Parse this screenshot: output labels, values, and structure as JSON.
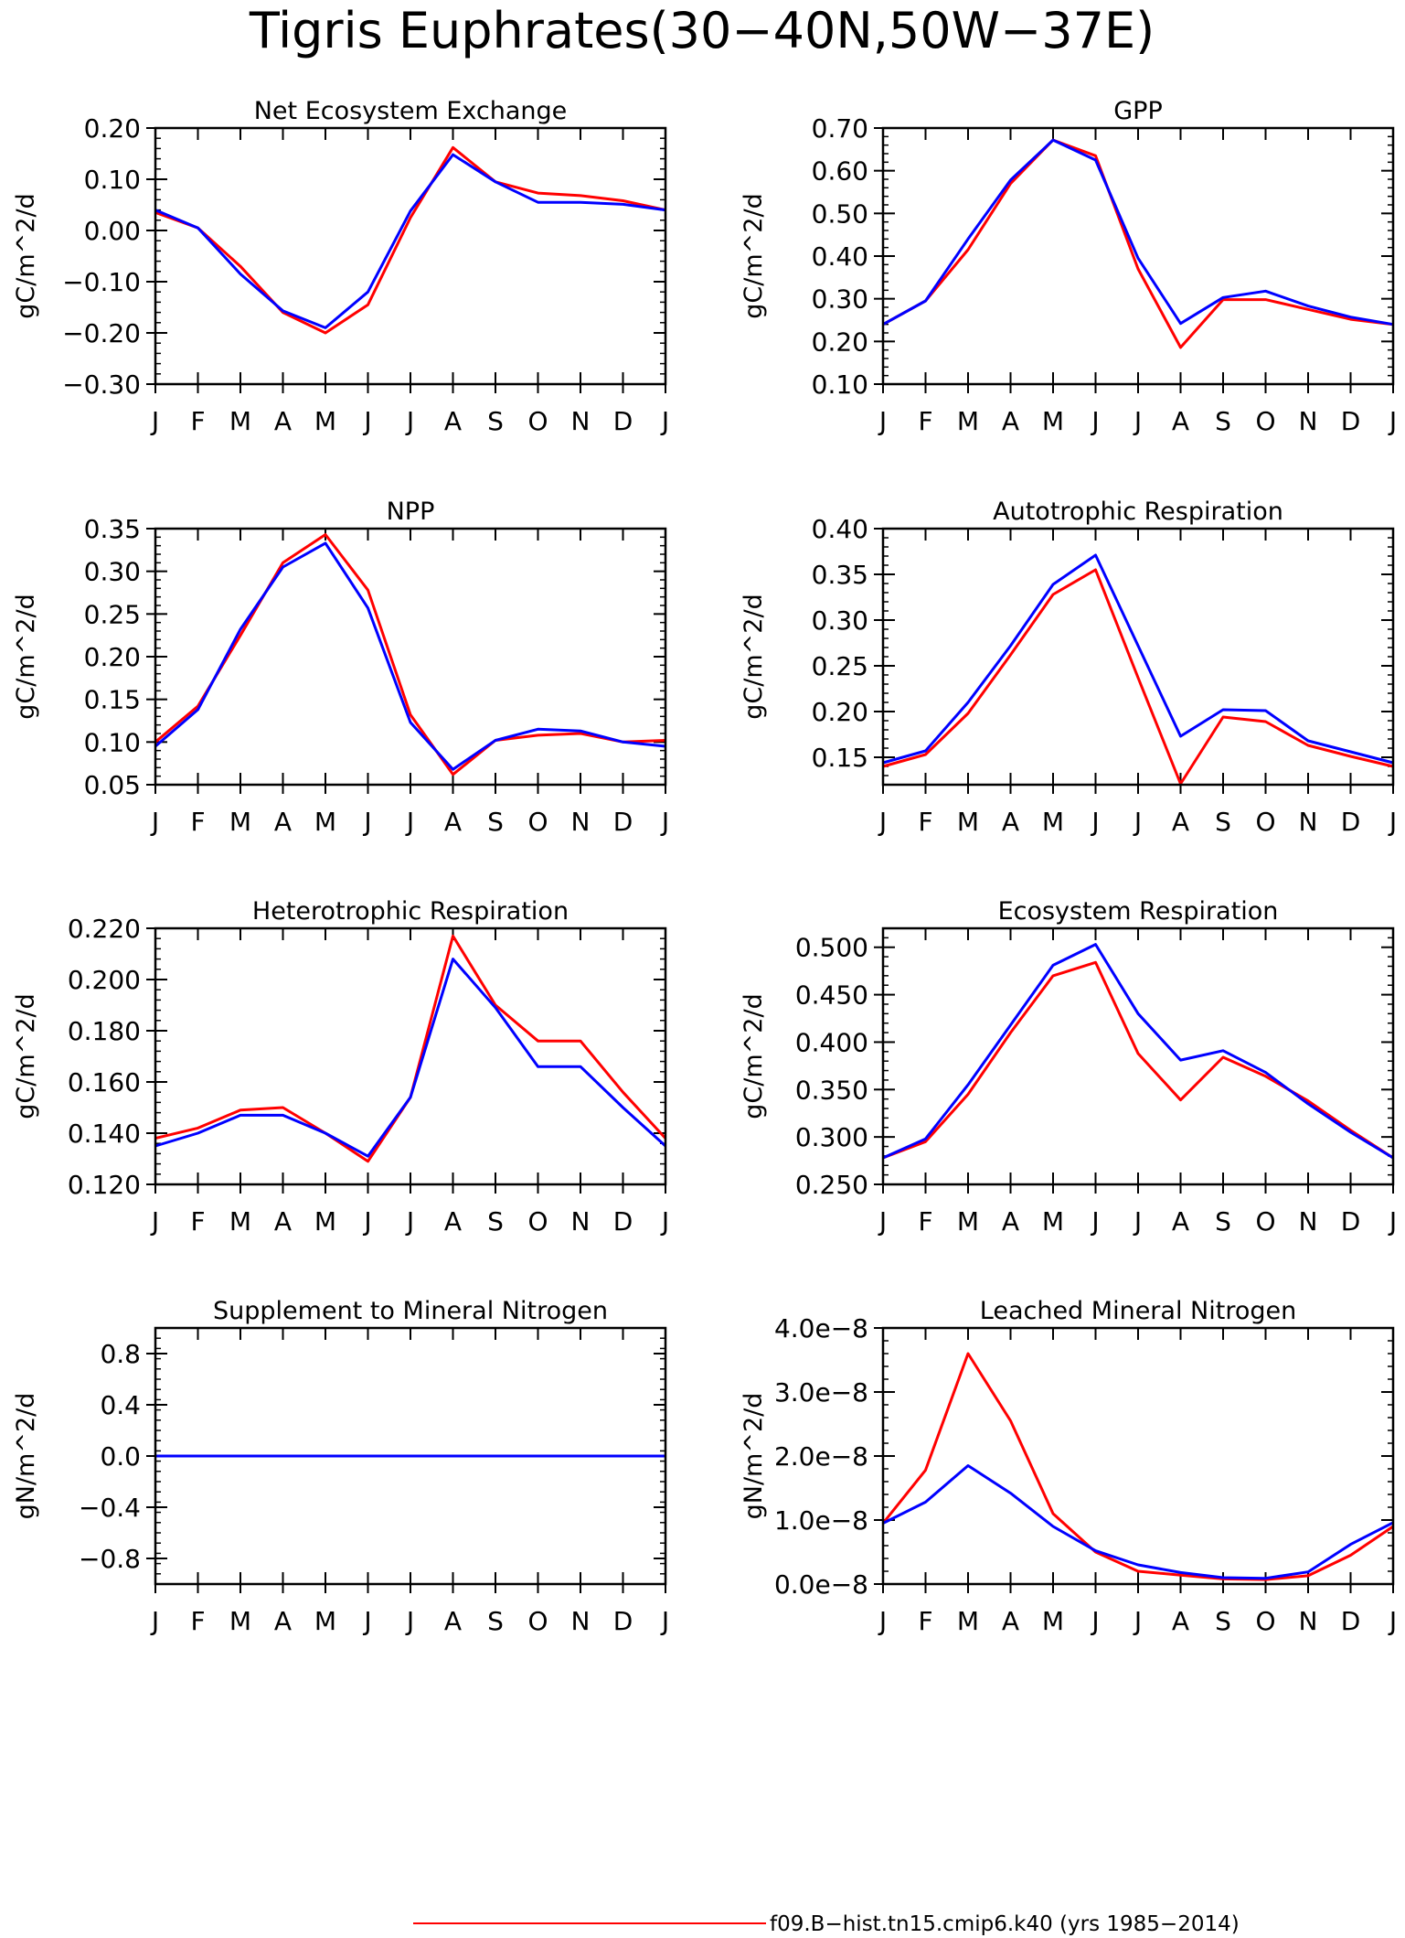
{
  "figure": {
    "title": "Tigris Euphrates(30−40N,50W−37E)",
    "legend": {
      "placement": "bottom-center",
      "entries": [
        {
          "label": "f09.B−hist.tn15.cmip6.k40 (yrs 1985−2014)",
          "color": "#ff0000"
        }
      ]
    }
  },
  "chart_data": [
    {
      "type": "line",
      "title": "Net Ecosystem Exchange",
      "ylabel": "gC/m^2/d",
      "categories": [
        "J",
        "F",
        "M",
        "A",
        "M",
        "J",
        "J",
        "A",
        "S",
        "O",
        "N",
        "D",
        "J"
      ],
      "ylim": [
        -0.3,
        0.2
      ],
      "yticks": [
        "−0.30",
        "−0.20",
        "−0.10",
        "0.00",
        "0.10",
        "0.20"
      ],
      "series": [
        {
          "color": "#ff0000",
          "values": [
            0.035,
            0.005,
            -0.07,
            -0.16,
            -0.2,
            -0.145,
            0.025,
            0.162,
            0.095,
            0.073,
            0.068,
            0.058,
            0.04
          ]
        },
        {
          "color": "#0000ff",
          "values": [
            0.04,
            0.005,
            -0.085,
            -0.157,
            -0.19,
            -0.12,
            0.038,
            0.148,
            0.095,
            0.055,
            0.055,
            0.051,
            0.04
          ]
        }
      ]
    },
    {
      "type": "line",
      "title": "GPP",
      "ylabel": "gC/m^2/d",
      "categories": [
        "J",
        "F",
        "M",
        "A",
        "M",
        "J",
        "J",
        "A",
        "S",
        "O",
        "N",
        "D",
        "J"
      ],
      "ylim": [
        0.1,
        0.7
      ],
      "yticks": [
        "0.10",
        "0.20",
        "0.30",
        "0.40",
        "0.50",
        "0.60",
        "0.70"
      ],
      "series": [
        {
          "color": "#ff0000",
          "values": [
            0.24,
            0.295,
            0.415,
            0.57,
            0.672,
            0.635,
            0.37,
            0.186,
            0.298,
            0.298,
            0.275,
            0.252,
            0.24
          ]
        },
        {
          "color": "#0000ff",
          "values": [
            0.24,
            0.295,
            0.44,
            0.578,
            0.672,
            0.625,
            0.395,
            0.242,
            0.303,
            0.318,
            0.283,
            0.257,
            0.24
          ]
        }
      ]
    },
    {
      "type": "line",
      "title": "NPP",
      "ylabel": "gC/m^2/d",
      "categories": [
        "J",
        "F",
        "M",
        "A",
        "M",
        "J",
        "J",
        "A",
        "S",
        "O",
        "N",
        "D",
        "J"
      ],
      "ylim": [
        0.05,
        0.35
      ],
      "yticks": [
        "0.05",
        "0.10",
        "0.15",
        "0.20",
        "0.25",
        "0.30",
        "0.35"
      ],
      "series": [
        {
          "color": "#ff0000",
          "values": [
            0.1,
            0.142,
            0.225,
            0.31,
            0.343,
            0.278,
            0.132,
            0.062,
            0.102,
            0.108,
            0.11,
            0.1,
            0.102
          ]
        },
        {
          "color": "#0000ff",
          "values": [
            0.095,
            0.138,
            0.232,
            0.305,
            0.333,
            0.257,
            0.123,
            0.068,
            0.102,
            0.115,
            0.113,
            0.1,
            0.095
          ]
        }
      ]
    },
    {
      "type": "line",
      "title": "Autotrophic Respiration",
      "ylabel": "gC/m^2/d",
      "categories": [
        "J",
        "F",
        "M",
        "A",
        "M",
        "J",
        "J",
        "A",
        "S",
        "O",
        "N",
        "D",
        "J"
      ],
      "ylim": [
        0.12,
        0.4
      ],
      "yticks": [
        "0.15",
        "0.20",
        "0.25",
        "0.30",
        "0.35",
        "0.40"
      ],
      "series": [
        {
          "color": "#ff0000",
          "values": [
            0.14,
            0.153,
            0.198,
            0.262,
            0.328,
            0.355,
            0.237,
            0.121,
            0.194,
            0.189,
            0.163,
            0.151,
            0.14
          ]
        },
        {
          "color": "#0000ff",
          "values": [
            0.144,
            0.157,
            0.21,
            0.272,
            0.339,
            0.371,
            0.272,
            0.173,
            0.202,
            0.201,
            0.168,
            0.156,
            0.144
          ]
        }
      ]
    },
    {
      "type": "line",
      "title": "Heterotrophic Respiration",
      "ylabel": "gC/m^2/d",
      "categories": [
        "J",
        "F",
        "M",
        "A",
        "M",
        "J",
        "J",
        "A",
        "S",
        "O",
        "N",
        "D",
        "J"
      ],
      "ylim": [
        0.12,
        0.22
      ],
      "yticks": [
        "0.120",
        "0.140",
        "0.160",
        "0.180",
        "0.200",
        "0.220"
      ],
      "series": [
        {
          "color": "#ff0000",
          "values": [
            0.138,
            0.142,
            0.149,
            0.15,
            0.14,
            0.129,
            0.154,
            0.217,
            0.19,
            0.176,
            0.176,
            0.156,
            0.138
          ]
        },
        {
          "color": "#0000ff",
          "values": [
            0.135,
            0.14,
            0.147,
            0.147,
            0.14,
            0.131,
            0.154,
            0.208,
            0.189,
            0.166,
            0.166,
            0.15,
            0.135
          ]
        }
      ]
    },
    {
      "type": "line",
      "title": "Ecosystem Respiration",
      "ylabel": "gC/m^2/d",
      "categories": [
        "J",
        "F",
        "M",
        "A",
        "M",
        "J",
        "J",
        "A",
        "S",
        "O",
        "N",
        "D",
        "J"
      ],
      "ylim": [
        0.25,
        0.52
      ],
      "yticks": [
        "0.250",
        "0.300",
        "0.350",
        "0.400",
        "0.450",
        "0.500"
      ],
      "series": [
        {
          "color": "#ff0000",
          "values": [
            0.278,
            0.295,
            0.345,
            0.41,
            0.47,
            0.484,
            0.388,
            0.339,
            0.384,
            0.364,
            0.338,
            0.307,
            0.278
          ]
        },
        {
          "color": "#0000ff",
          "values": [
            0.278,
            0.298,
            0.355,
            0.418,
            0.481,
            0.503,
            0.43,
            0.381,
            0.391,
            0.368,
            0.335,
            0.305,
            0.278
          ]
        }
      ]
    },
    {
      "type": "line",
      "title": "Supplement to Mineral Nitrogen",
      "ylabel": "gN/m^2/d",
      "categories": [
        "J",
        "F",
        "M",
        "A",
        "M",
        "J",
        "J",
        "A",
        "S",
        "O",
        "N",
        "D",
        "J"
      ],
      "ylim": [
        -1.0,
        1.0
      ],
      "yticks": [
        "−0.8",
        "−0.4",
        "0.0",
        "0.4",
        "0.8"
      ],
      "series": [
        {
          "color": "#ff0000",
          "values": [
            0,
            0,
            0,
            0,
            0,
            0,
            0,
            0,
            0,
            0,
            0,
            0,
            0
          ]
        },
        {
          "color": "#0000ff",
          "values": [
            0,
            0,
            0,
            0,
            0,
            0,
            0,
            0,
            0,
            0,
            0,
            0,
            0
          ]
        }
      ]
    },
    {
      "type": "line",
      "title": "Leached Mineral Nitrogen",
      "ylabel": "gN/m^2/d",
      "categories": [
        "J",
        "F",
        "M",
        "A",
        "M",
        "J",
        "J",
        "A",
        "S",
        "O",
        "N",
        "D",
        "J"
      ],
      "ylim": [
        0.0,
        4e-08
      ],
      "yticks": [
        "0.0e−8",
        "1.0e−8",
        "2.0e−8",
        "3.0e−8",
        "4.0e−8"
      ],
      "series": [
        {
          "color": "#ff0000",
          "values": [
            9.5e-09,
            1.78e-08,
            3.6e-08,
            2.55e-08,
            1.1e-08,
            5e-09,
            2e-09,
            1.4e-09,
            8e-10,
            7e-10,
            1.3e-09,
            4.5e-09,
            9e-09
          ]
        },
        {
          "color": "#0000ff",
          "values": [
            9.5e-09,
            1.28e-08,
            1.85e-08,
            1.42e-08,
            9e-09,
            5.2e-09,
            3e-09,
            1.8e-09,
            1e-09,
            9e-10,
            1.9e-09,
            6.2e-09,
            9.6e-09
          ]
        }
      ]
    }
  ]
}
